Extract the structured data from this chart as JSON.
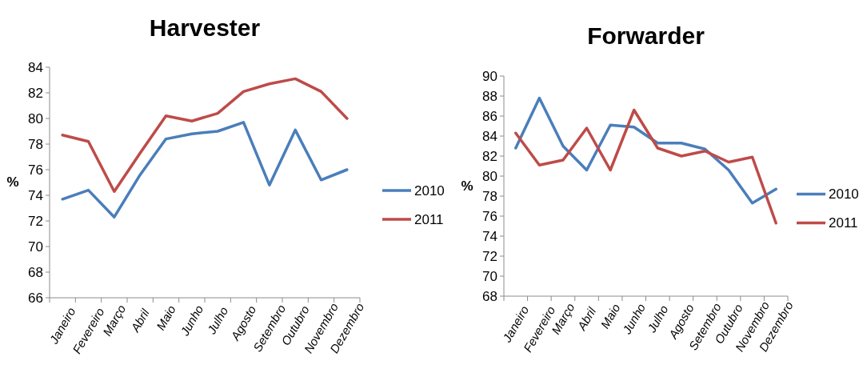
{
  "chart_data": [
    {
      "type": "line",
      "title": "Harvester",
      "ylabel": "%",
      "categories": [
        "Janeiro",
        "Fevereiro",
        "Março",
        "Abril",
        "Maio",
        "Junho",
        "Julho",
        "Agosto",
        "Setembro",
        "Outubro",
        "Novembro",
        "Dezembro"
      ],
      "series": [
        {
          "name": "2010",
          "color": "#4a7ebb",
          "values": [
            73.7,
            74.4,
            72.3,
            75.6,
            78.4,
            78.8,
            79.0,
            79.7,
            74.8,
            79.1,
            75.2,
            76.0
          ]
        },
        {
          "name": "2011",
          "color": "#be4b48",
          "values": [
            78.7,
            78.2,
            74.3,
            77.3,
            80.2,
            79.8,
            80.4,
            82.1,
            82.7,
            83.1,
            82.1,
            80.0
          ]
        }
      ],
      "ylim": [
        66,
        84
      ],
      "yticks": [
        66,
        68,
        70,
        72,
        74,
        76,
        78,
        80,
        82,
        84
      ],
      "grid": false,
      "legend": "right",
      "marker": "none",
      "line_style": "solid"
    },
    {
      "type": "line",
      "title": "Forwarder",
      "ylabel": "%",
      "categories": [
        "Janeiro",
        "Fevereiro",
        "Março",
        "Abril",
        "Maio",
        "Junho",
        "Julho",
        "Agosto",
        "Setembro",
        "Outubro",
        "Novembro",
        "Dezembro"
      ],
      "series": [
        {
          "name": "2010",
          "color": "#4a7ebb",
          "values": [
            82.8,
            87.8,
            83.0,
            80.6,
            85.1,
            84.9,
            83.3,
            83.3,
            82.7,
            80.6,
            77.3,
            78.7
          ]
        },
        {
          "name": "2011",
          "color": "#be4b48",
          "values": [
            84.3,
            81.1,
            81.6,
            84.8,
            80.6,
            86.6,
            82.8,
            82.0,
            82.5,
            81.4,
            81.9,
            75.3
          ]
        }
      ],
      "ylim": [
        68,
        90
      ],
      "yticks": [
        68,
        70,
        72,
        74,
        76,
        78,
        80,
        82,
        84,
        86,
        88,
        90
      ],
      "grid": false,
      "legend": "right",
      "marker": "none",
      "line_style": "solid"
    }
  ]
}
